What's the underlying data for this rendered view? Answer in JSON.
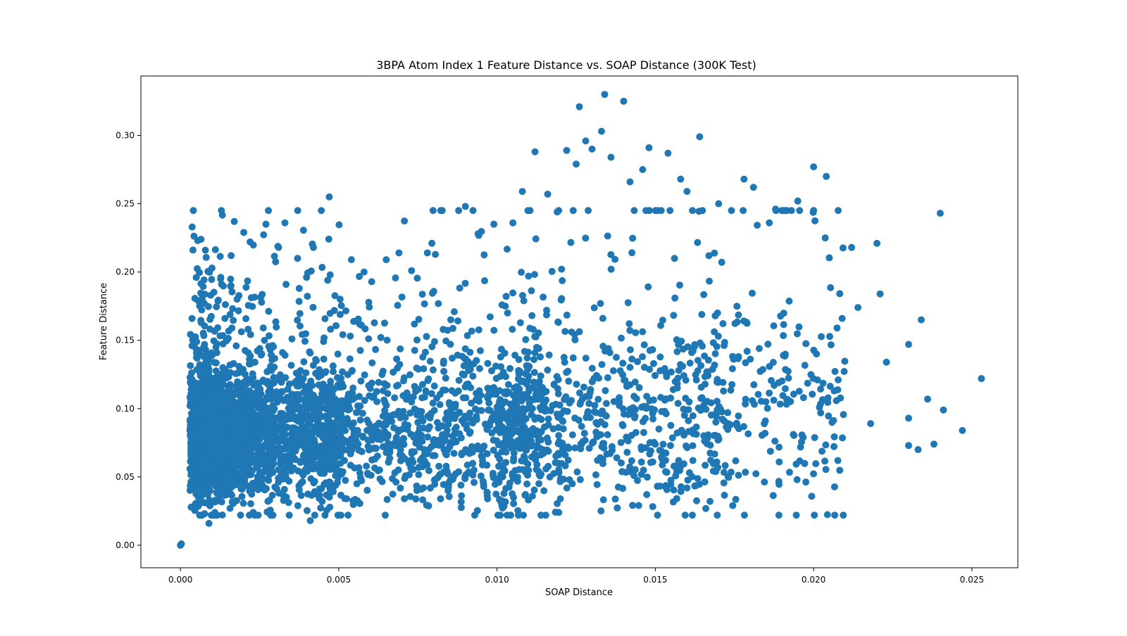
{
  "chart_data": {
    "type": "scatter",
    "title": "3BPA Atom Index 1 Feature Distance vs. SOAP Distance (300K Test)",
    "xlabel": "SOAP Distance",
    "ylabel": "Feature Distance",
    "xlim": [
      -0.00125,
      0.02645
    ],
    "ylim": [
      -0.0165,
      0.3435
    ],
    "xticks": [
      0.0,
      0.005,
      0.01,
      0.015,
      0.02,
      0.025
    ],
    "xtick_labels": [
      "0.000",
      "0.005",
      "0.010",
      "0.015",
      "0.020",
      "0.025"
    ],
    "yticks": [
      0.0,
      0.05,
      0.1,
      0.15,
      0.2,
      0.25,
      0.3
    ],
    "ytick_labels": [
      "0.00",
      "0.05",
      "0.10",
      "0.15",
      "0.20",
      "0.25",
      "0.30"
    ],
    "grid": false,
    "marker_color": "#1f77b4",
    "series": [
      {
        "points": [
          [
            0.0,
            0.0
          ],
          [
            3e-05,
            0.001
          ],
          [
            0.0047,
            0.255
          ],
          [
            0.0017,
            0.237
          ],
          [
            0.0027,
            0.235
          ],
          [
            0.002,
            0.229
          ],
          [
            0.0022,
            0.222
          ],
          [
            0.0031,
            0.218
          ],
          [
            0.0042,
            0.218
          ],
          [
            0.0037,
            0.21
          ],
          [
            0.0054,
            0.209
          ],
          [
            0.0016,
            0.212
          ],
          [
            0.0005,
            0.196
          ],
          [
            0.0013,
            0.191
          ],
          [
            0.0041,
            0.018
          ],
          [
            0.0009,
            0.016
          ],
          [
            0.0023,
            0.024
          ],
          [
            0.0058,
            0.2
          ],
          [
            0.0065,
            0.209
          ],
          [
            0.0069,
            0.214
          ],
          [
            0.0073,
            0.201
          ],
          [
            0.0078,
            0.214
          ],
          [
            0.009,
            0.248
          ],
          [
            0.0094,
            0.228
          ],
          [
            0.0099,
            0.235
          ],
          [
            0.0105,
            0.236
          ],
          [
            0.0112,
            0.288
          ],
          [
            0.0108,
            0.259
          ],
          [
            0.0116,
            0.257
          ],
          [
            0.0119,
            0.244
          ],
          [
            0.0122,
            0.289
          ],
          [
            0.0125,
            0.279
          ],
          [
            0.0126,
            0.321
          ],
          [
            0.0128,
            0.296
          ],
          [
            0.013,
            0.29
          ],
          [
            0.0133,
            0.303
          ],
          [
            0.0134,
            0.33
          ],
          [
            0.0136,
            0.284
          ],
          [
            0.014,
            0.325
          ],
          [
            0.0142,
            0.266
          ],
          [
            0.0146,
            0.275
          ],
          [
            0.0148,
            0.291
          ],
          [
            0.0154,
            0.287
          ],
          [
            0.0158,
            0.268
          ],
          [
            0.0164,
            0.299
          ],
          [
            0.016,
            0.259
          ],
          [
            0.017,
            0.25
          ],
          [
            0.0178,
            0.268
          ],
          [
            0.0181,
            0.262
          ],
          [
            0.0186,
            0.236
          ],
          [
            0.0188,
            0.246
          ],
          [
            0.0195,
            0.252
          ],
          [
            0.02,
            0.277
          ],
          [
            0.0204,
            0.27
          ],
          [
            0.0212,
            0.218
          ],
          [
            0.022,
            0.221
          ],
          [
            0.0221,
            0.184
          ],
          [
            0.024,
            0.243
          ],
          [
            0.0253,
            0.122
          ],
          [
            0.0247,
            0.084
          ],
          [
            0.0236,
            0.107
          ],
          [
            0.0234,
            0.165
          ],
          [
            0.023,
            0.147
          ],
          [
            0.0223,
            0.134
          ],
          [
            0.0218,
            0.089
          ],
          [
            0.0238,
            0.074
          ],
          [
            0.0233,
            0.07
          ],
          [
            0.0241,
            0.099
          ],
          [
            0.023,
            0.093
          ],
          [
            0.023,
            0.073
          ],
          [
            0.0209,
            0.166
          ],
          [
            0.0214,
            0.174
          ],
          [
            0.012,
            0.034
          ],
          [
            0.0097,
            0.034
          ],
          [
            0.0173,
            0.05
          ]
        ]
      }
    ],
    "cloud": {
      "n": 4300,
      "note": "dense band of additional points between the labelled extremes"
    }
  }
}
